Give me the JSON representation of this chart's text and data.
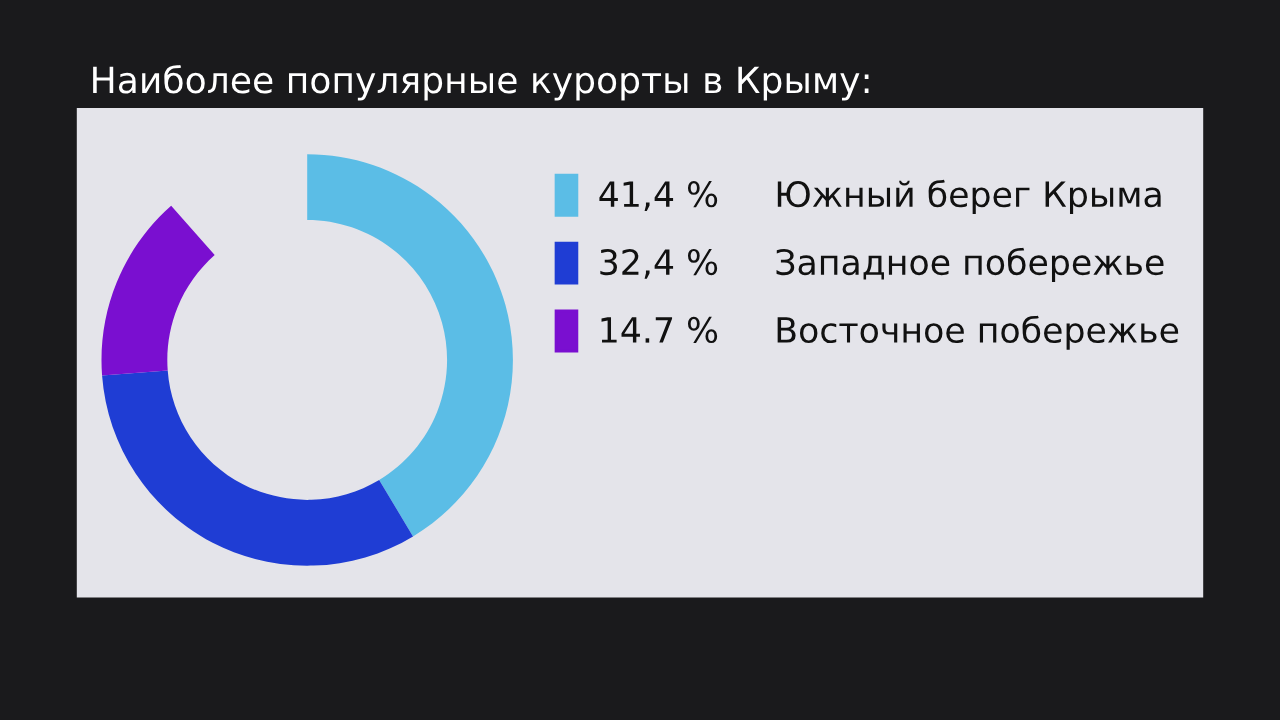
{
  "chart_data": {
    "type": "donut",
    "title": "Наиболее популярные курорты в Крыму:",
    "categories": [
      "Южный берег Крыма",
      "Западное побережье",
      "Восточное побережье"
    ],
    "values": [
      41.4,
      32.4,
      14.7
    ],
    "value_labels": [
      "41,4 %",
      "32,4 %",
      "14.7 %"
    ],
    "colors": [
      "#5bbde6",
      "#1f3dd4",
      "#7a0fd0"
    ],
    "legend": "right"
  }
}
